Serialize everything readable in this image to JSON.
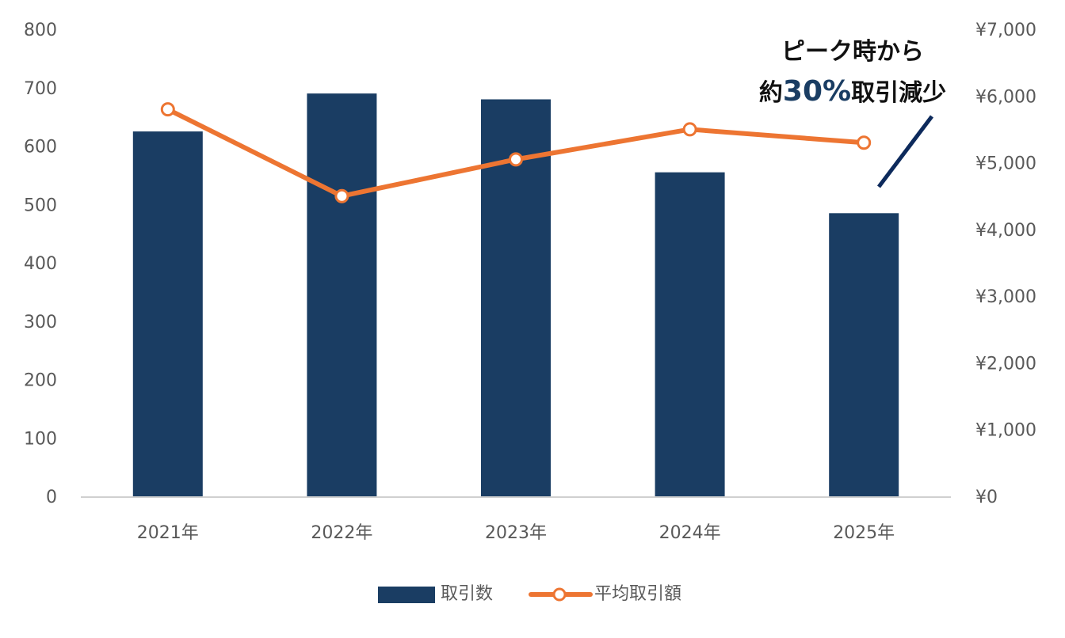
{
  "chart_data": {
    "type": "bar+line",
    "title": "",
    "categories": [
      "2021年",
      "2022年",
      "2023年",
      "2024年",
      "2025年"
    ],
    "series": [
      {
        "name": "取引数",
        "type": "bar",
        "axis": "left",
        "color": "#1a3d63",
        "values": [
          625,
          690,
          680,
          555,
          485
        ]
      },
      {
        "name": "平均取引額",
        "type": "line",
        "axis": "right",
        "color": "#ed7532",
        "marker": "hollow-circle",
        "values": [
          5800,
          4500,
          5050,
          5500,
          5300
        ]
      }
    ],
    "left_axis": {
      "ylim": [
        0,
        800
      ],
      "ticks": [
        "0",
        "100",
        "200",
        "300",
        "400",
        "500",
        "600",
        "700",
        "800"
      ]
    },
    "right_axis": {
      "ylim": [
        0,
        7000
      ],
      "ticks": [
        "¥0",
        "¥1,000",
        "¥2,000",
        "¥3,000",
        "¥4,000",
        "¥5,000",
        "¥6,000",
        "¥7,000"
      ]
    },
    "xlabel": "",
    "ylabel": "",
    "grid": false,
    "legend": {
      "position": "bottom",
      "entries": [
        "取引数",
        "平均取引額"
      ]
    },
    "annotation": {
      "line1": "ピーク時から",
      "line2_prefix": "約",
      "line2_highlight": "30%",
      "line2_suffix": "取引減少",
      "highlight_color": "#1a3d63",
      "arrow_color": "#0d2a5c"
    }
  }
}
